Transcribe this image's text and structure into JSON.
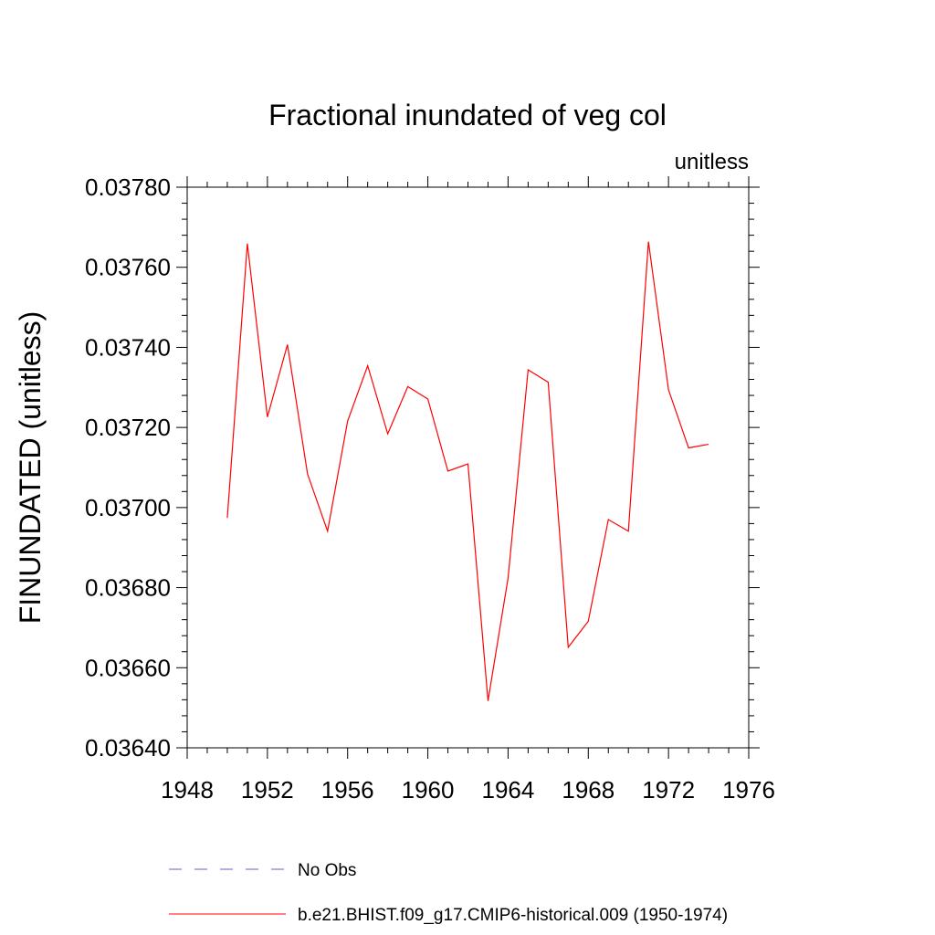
{
  "chart_data": {
    "type": "line",
    "title": "Fractional inundated of veg col",
    "units_label": "unitless",
    "ylabel": "FINUNDATED  (unitless)",
    "xlabel": "",
    "xlim": [
      1948,
      1976
    ],
    "ylim": [
      0.0364,
      0.0378
    ],
    "x_ticks": [
      1948,
      1952,
      1956,
      1960,
      1964,
      1968,
      1972,
      1976
    ],
    "x_tick_labels": [
      "1948",
      "1952",
      "1956",
      "1960",
      "1964",
      "1968",
      "1972",
      "1976"
    ],
    "y_ticks": [
      0.0364,
      0.0366,
      0.0368,
      0.037,
      0.0372,
      0.0374,
      0.0376,
      0.0378
    ],
    "y_tick_labels": [
      "0.03640",
      "0.03660",
      "0.03680",
      "0.03700",
      "0.03720",
      "0.03740",
      "0.03760",
      "0.03780"
    ],
    "grid": false,
    "legend_placement": "bottom",
    "series": [
      {
        "name": "No Obs",
        "color": "#6a5acd",
        "dash": "dashed",
        "x": [],
        "y": []
      },
      {
        "name": "b.e21.BHIST.f09_g17.CMIP6-historical.009 (1950-1974)",
        "color": "#ff0000",
        "dash": "solid",
        "x": [
          1950,
          1951,
          1952,
          1953,
          1954,
          1955,
          1956,
          1957,
          1958,
          1959,
          1960,
          1961,
          1962,
          1963,
          1964,
          1965,
          1966,
          1967,
          1968,
          1969,
          1970,
          1971,
          1972,
          1973,
          1974
        ],
        "y": [
          0.036974,
          0.037659,
          0.037226,
          0.037407,
          0.037084,
          0.036941,
          0.037216,
          0.037354,
          0.037184,
          0.037302,
          0.037271,
          0.037091,
          0.037109,
          0.036517,
          0.036824,
          0.037344,
          0.037313,
          0.036651,
          0.036716,
          0.03697,
          0.036941,
          0.037664,
          0.037294,
          0.037149,
          0.037158
        ]
      }
    ]
  }
}
